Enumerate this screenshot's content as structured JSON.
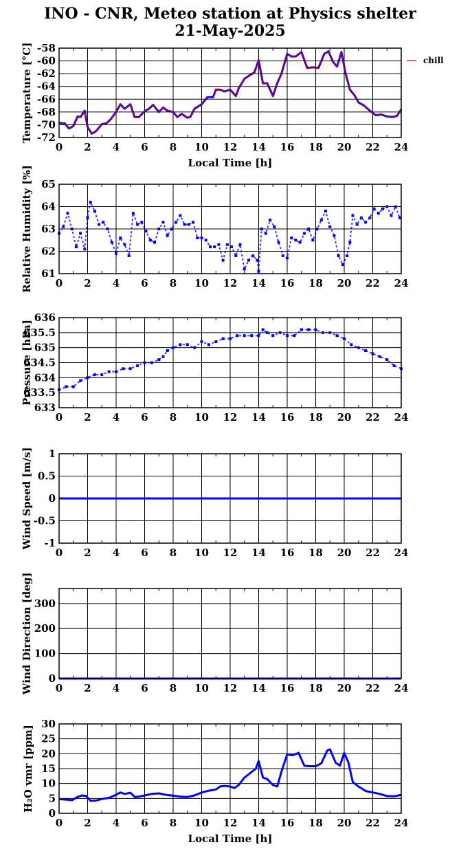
{
  "figure": {
    "title_line1": "INO - CNR, Meteo station at Physics shelter",
    "title_line2": "21-May-2025"
  },
  "chart_data": [
    {
      "type": "line",
      "ylabel": "Temperature [°C]",
      "xlabel": "Local Time [h]",
      "xlim": [
        0,
        24
      ],
      "ylim": [
        -72,
        -58
      ],
      "yticks": [
        -72,
        -70,
        -68,
        -66,
        -64,
        -62,
        -60,
        -58
      ],
      "xticks": [
        0,
        2,
        4,
        6,
        8,
        10,
        12,
        14,
        16,
        18,
        20,
        22,
        24
      ],
      "grid": true,
      "legend": {
        "position": "outside-right",
        "entries": [
          "chill"
        ]
      },
      "series": [
        {
          "name": "",
          "color": "#0000ff",
          "x": [
            0,
            0.4,
            0.7,
            1.0,
            1.3,
            1.5,
            1.8,
            2.0,
            2.3,
            2.6,
            3.0,
            3.3,
            3.6,
            4.0,
            4.3,
            4.6,
            5.0,
            5.3,
            5.6,
            6.0,
            6.3,
            6.6,
            7.0,
            7.3,
            7.6,
            8.0,
            8.3,
            8.6,
            9.0,
            9.2,
            9.5,
            10.0,
            10.4,
            10.8,
            11.0,
            11.3,
            11.6,
            12.0,
            12.4,
            12.6,
            13.0,
            13.4,
            13.7,
            14.0,
            14.3,
            14.6,
            15.0,
            15.3,
            15.6,
            16.0,
            16.3,
            16.6,
            17.0,
            17.4,
            17.8,
            18.2,
            18.6,
            18.9,
            19.2,
            19.5,
            19.8,
            20.1,
            20.4,
            20.7,
            21.0,
            21.4,
            21.8,
            22.2,
            22.6,
            23.0,
            23.4,
            23.7,
            24.0
          ],
          "y": [
            -69.7,
            -69.8,
            -70.6,
            -70.2,
            -68.7,
            -68.8,
            -67.8,
            -70.4,
            -71.4,
            -71.0,
            -69.9,
            -69.8,
            -69.2,
            -68.0,
            -66.8,
            -67.5,
            -66.8,
            -68.8,
            -68.8,
            -67.9,
            -67.5,
            -66.9,
            -68.0,
            -67.3,
            -67.8,
            -68.0,
            -68.8,
            -68.3,
            -68.9,
            -68.8,
            -67.5,
            -66.8,
            -65.7,
            -65.7,
            -64.5,
            -64.5,
            -64.8,
            -64.5,
            -65.5,
            -64.3,
            -62.8,
            -62.2,
            -61.8,
            -59.9,
            -63.5,
            -63.5,
            -65.5,
            -63.5,
            -62.0,
            -58.9,
            -59.3,
            -59.3,
            -58.6,
            -61.1,
            -61.0,
            -61.1,
            -58.9,
            -58.5,
            -60.1,
            -60.9,
            -58.6,
            -62.0,
            -64.5,
            -65.3,
            -66.5,
            -67.0,
            -67.8,
            -68.5,
            -68.4,
            -68.7,
            -68.8,
            -68.6,
            -67.6
          ]
        },
        {
          "name": "chill",
          "color": "#cc0000",
          "x": [
            0,
            0.4,
            0.7,
            1.0,
            1.3,
            1.5,
            1.8,
            2.0,
            2.3,
            2.6,
            3.0,
            3.3,
            3.6,
            4.0,
            4.3,
            4.6,
            5.0,
            5.3,
            5.6,
            6.0,
            6.3,
            6.6,
            7.0,
            7.3,
            7.6,
            8.0,
            8.3,
            8.6,
            9.0,
            9.2,
            9.5,
            10.0,
            10.4,
            10.8,
            11.0,
            11.3,
            11.6,
            12.0,
            12.4,
            12.6,
            13.0,
            13.4,
            13.7,
            14.0,
            14.3,
            14.6,
            15.0,
            15.3,
            15.6,
            16.0,
            16.3,
            16.6,
            17.0,
            17.4,
            17.8,
            18.2,
            18.6,
            18.9,
            19.2,
            19.5,
            19.8,
            20.1,
            20.4,
            20.7,
            21.0,
            21.4,
            21.8,
            22.2,
            22.6,
            23.0,
            23.4,
            23.7,
            24.0
          ],
          "y": [
            -69.7,
            -69.8,
            -70.6,
            -70.2,
            -68.7,
            -68.8,
            -67.8,
            -70.4,
            -71.4,
            -71.0,
            -69.9,
            -69.8,
            -69.2,
            -68.0,
            -66.8,
            -67.5,
            -66.8,
            -68.8,
            -68.8,
            -67.9,
            -67.5,
            -66.9,
            -68.0,
            -67.3,
            -67.8,
            -68.0,
            -68.8,
            -68.3,
            -68.9,
            -68.8,
            -67.5,
            -66.8,
            -65.7,
            -65.7,
            -64.5,
            -64.5,
            -64.8,
            -64.5,
            -65.5,
            -64.3,
            -62.8,
            -62.2,
            -61.8,
            -59.9,
            -63.5,
            -63.5,
            -65.5,
            -63.5,
            -62.0,
            -58.9,
            -59.3,
            -59.3,
            -58.6,
            -61.1,
            -61.0,
            -61.1,
            -58.9,
            -58.5,
            -60.1,
            -60.9,
            -58.6,
            -62.0,
            -64.5,
            -65.3,
            -66.5,
            -67.0,
            -67.8,
            -68.5,
            -68.4,
            -68.7,
            -68.8,
            -68.6,
            -67.6
          ]
        }
      ]
    },
    {
      "type": "scatter",
      "ylabel": "Relative Humidity [%]",
      "xlabel": "",
      "xlim": [
        0,
        24
      ],
      "ylim": [
        61,
        65
      ],
      "yticks": [
        61,
        62,
        63,
        64,
        65
      ],
      "xticks": [
        0,
        2,
        4,
        6,
        8,
        10,
        12,
        14,
        16,
        18,
        20,
        22,
        24
      ],
      "grid": true,
      "series": [
        {
          "name": "",
          "color": "#0000ff",
          "x": [
            0,
            0.3,
            0.6,
            0.9,
            1.2,
            1.5,
            1.8,
            2.0,
            2.2,
            2.5,
            2.8,
            3.1,
            3.4,
            3.7,
            4.0,
            4.3,
            4.6,
            4.9,
            5.2,
            5.5,
            5.8,
            6.1,
            6.4,
            6.7,
            7.0,
            7.3,
            7.6,
            7.9,
            8.2,
            8.5,
            8.8,
            9.1,
            9.4,
            9.7,
            10.0,
            10.3,
            10.6,
            10.9,
            11.2,
            11.5,
            11.8,
            12.1,
            12.4,
            12.7,
            13.0,
            13.3,
            13.6,
            13.9,
            14.0,
            14.2,
            14.5,
            14.8,
            15.1,
            15.4,
            15.7,
            16.0,
            16.3,
            16.6,
            16.9,
            17.2,
            17.5,
            17.8,
            18.1,
            18.4,
            18.7,
            19.0,
            19.3,
            19.6,
            19.9,
            20.2,
            20.4,
            20.6,
            20.9,
            21.2,
            21.5,
            21.8,
            22.1,
            22.4,
            22.7,
            23.0,
            23.3,
            23.6,
            23.9
          ],
          "y": [
            62.8,
            63.1,
            63.7,
            63.0,
            62.2,
            62.8,
            62.1,
            63.5,
            64.2,
            63.8,
            63.2,
            63.3,
            63.0,
            62.4,
            61.9,
            62.6,
            62.3,
            61.8,
            63.7,
            63.2,
            63.3,
            62.9,
            62.5,
            62.4,
            63.0,
            63.3,
            62.7,
            63.0,
            63.3,
            63.6,
            63.2,
            63.2,
            63.3,
            62.6,
            62.6,
            62.5,
            62.2,
            62.2,
            62.3,
            61.6,
            62.3,
            62.2,
            61.8,
            62.3,
            61.2,
            61.6,
            61.8,
            61.6,
            61.1,
            63.0,
            62.8,
            63.4,
            63.1,
            62.4,
            61.8,
            61.7,
            62.6,
            62.5,
            62.4,
            62.8,
            63.0,
            62.5,
            63.0,
            63.4,
            63.8,
            63.1,
            62.7,
            61.8,
            61.4,
            61.8,
            62.4,
            63.6,
            63.2,
            63.5,
            63.3,
            63.5,
            63.9,
            63.7,
            63.9,
            64.0,
            63.6,
            64.0,
            63.5
          ]
        }
      ]
    },
    {
      "type": "scatter",
      "ylabel": "Pressure [hPa]",
      "xlabel": "",
      "xlim": [
        0,
        24
      ],
      "ylim": [
        633,
        636
      ],
      "yticks": [
        633,
        633.5,
        634,
        634.5,
        635,
        635.5,
        636
      ],
      "xticks": [
        0,
        2,
        4,
        6,
        8,
        10,
        12,
        14,
        16,
        18,
        20,
        22,
        24
      ],
      "grid": true,
      "series": [
        {
          "name": "",
          "color": "#0000ff",
          "x": [
            0,
            0.5,
            1.0,
            1.5,
            2.0,
            2.5,
            3.0,
            3.5,
            4.0,
            4.5,
            5.0,
            5.5,
            6.0,
            6.5,
            7.0,
            7.3,
            7.6,
            8.0,
            8.5,
            9.0,
            9.5,
            10.0,
            10.5,
            11.0,
            11.5,
            12.0,
            12.5,
            13.0,
            13.5,
            14.0,
            14.3,
            14.6,
            15.0,
            15.5,
            16.0,
            16.5,
            17.0,
            17.5,
            18.0,
            18.5,
            19.0,
            19.5,
            20.0,
            20.5,
            21.0,
            21.5,
            22.0,
            22.5,
            23.0,
            23.5,
            24.0
          ],
          "y": [
            633.6,
            633.7,
            633.7,
            633.9,
            634.0,
            634.1,
            634.1,
            634.2,
            634.2,
            634.3,
            634.3,
            634.4,
            634.5,
            634.5,
            634.6,
            634.7,
            634.9,
            635.0,
            635.1,
            635.1,
            635.0,
            635.2,
            635.1,
            635.2,
            635.3,
            635.3,
            635.4,
            635.4,
            635.4,
            635.4,
            635.6,
            635.5,
            635.4,
            635.5,
            635.4,
            635.4,
            635.6,
            635.6,
            635.6,
            635.5,
            635.5,
            635.4,
            635.3,
            635.1,
            635.0,
            634.9,
            634.8,
            634.7,
            634.6,
            634.4,
            634.3
          ]
        }
      ]
    },
    {
      "type": "line",
      "ylabel": "Wind Speed [m/s]",
      "xlabel": "",
      "xlim": [
        0,
        24
      ],
      "ylim": [
        -1,
        1
      ],
      "yticks": [
        -1,
        -0.5,
        0,
        0.5,
        1
      ],
      "xticks": [
        0,
        2,
        4,
        6,
        8,
        10,
        12,
        14,
        16,
        18,
        20,
        22,
        24
      ],
      "grid": true,
      "series": [
        {
          "name": "",
          "color": "#0000ff",
          "x": [
            0,
            24
          ],
          "y": [
            0,
            0
          ]
        }
      ]
    },
    {
      "type": "line",
      "ylabel": "Wind Direction [deg]",
      "xlabel": "",
      "xlim": [
        0,
        24
      ],
      "ylim": [
        0,
        360
      ],
      "yticks": [
        0,
        100,
        200,
        300
      ],
      "xticks": [
        0,
        2,
        4,
        6,
        8,
        10,
        12,
        14,
        16,
        18,
        20,
        22,
        24
      ],
      "grid": true,
      "series": [
        {
          "name": "",
          "color": "#0000ff",
          "x": [
            0,
            24
          ],
          "y": [
            0,
            0
          ]
        }
      ]
    },
    {
      "type": "line",
      "ylabel": "H₂O vmr [ppm]",
      "xlabel": "Local Time [h]",
      "xlim": [
        0,
        24
      ],
      "ylim": [
        0,
        30
      ],
      "yticks": [
        0,
        5,
        10,
        15,
        20,
        25,
        30
      ],
      "xticks": [
        0,
        2,
        4,
        6,
        8,
        10,
        12,
        14,
        16,
        18,
        20,
        22,
        24
      ],
      "grid": true,
      "series": [
        {
          "name": "",
          "color": "#0000ff",
          "x": [
            0,
            0.5,
            0.9,
            1.3,
            1.6,
            1.9,
            2.2,
            2.6,
            3.0,
            3.5,
            4.0,
            4.3,
            4.6,
            5.0,
            5.3,
            5.6,
            6.0,
            6.5,
            7.0,
            7.5,
            8.0,
            8.5,
            9.0,
            9.5,
            10.0,
            10.5,
            11.0,
            11.3,
            11.6,
            12.0,
            12.3,
            12.6,
            13.0,
            13.4,
            13.8,
            14.0,
            14.3,
            14.6,
            15.0,
            15.3,
            15.6,
            16.0,
            16.4,
            16.8,
            17.2,
            17.6,
            18.0,
            18.4,
            18.8,
            19.0,
            19.4,
            19.7,
            20.0,
            20.3,
            20.6,
            21.0,
            21.5,
            22.0,
            22.5,
            23.0,
            23.5,
            24.0
          ],
          "y": [
            4.8,
            4.6,
            4.4,
            5.5,
            6.0,
            5.8,
            4.2,
            4.3,
            4.8,
            5.2,
            6.2,
            7.0,
            6.5,
            6.9,
            5.5,
            5.6,
            6.0,
            6.5,
            6.7,
            6.2,
            5.9,
            5.6,
            5.5,
            6.0,
            7.0,
            7.6,
            8.0,
            9.0,
            9.2,
            9.0,
            8.5,
            9.5,
            12.0,
            13.5,
            15.0,
            17.6,
            12.0,
            11.5,
            9.5,
            9.0,
            14.0,
            19.8,
            19.5,
            20.3,
            16.0,
            15.8,
            15.8,
            16.8,
            21.0,
            21.5,
            17.0,
            16.0,
            20.3,
            17.0,
            10.5,
            9.0,
            7.5,
            7.0,
            6.5,
            5.8,
            5.7,
            6.2
          ]
        }
      ]
    }
  ]
}
